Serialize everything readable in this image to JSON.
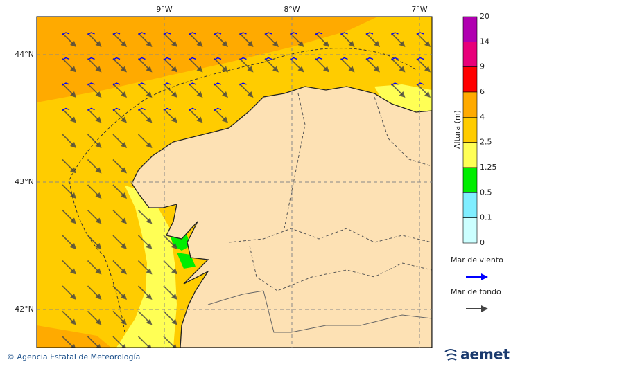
{
  "map": {
    "lon_labels": [
      "9°W",
      "8°W",
      "7°W"
    ],
    "lat_labels": [
      "44°N",
      "43°N",
      "42°N"
    ],
    "colorbar": {
      "title": "Altura (m)",
      "labels": [
        20,
        14,
        9,
        6,
        4,
        2.5,
        1.25,
        0.5,
        0.1,
        0
      ],
      "colors": [
        "#b000b0",
        "#e8007a",
        "#ff0000",
        "#ffaa00",
        "#ffcc00",
        "#ffff55",
        "#00ee00",
        "#80eeff",
        "#ccffff"
      ]
    },
    "legend": [
      {
        "label": "Mar de viento",
        "color": "#0000ff"
      },
      {
        "label": "Mar de fondo",
        "color": "#444444"
      }
    ],
    "footer": {
      "copyright": "© Agencia Estatal de Meteorología",
      "logo": "aemet"
    }
  }
}
